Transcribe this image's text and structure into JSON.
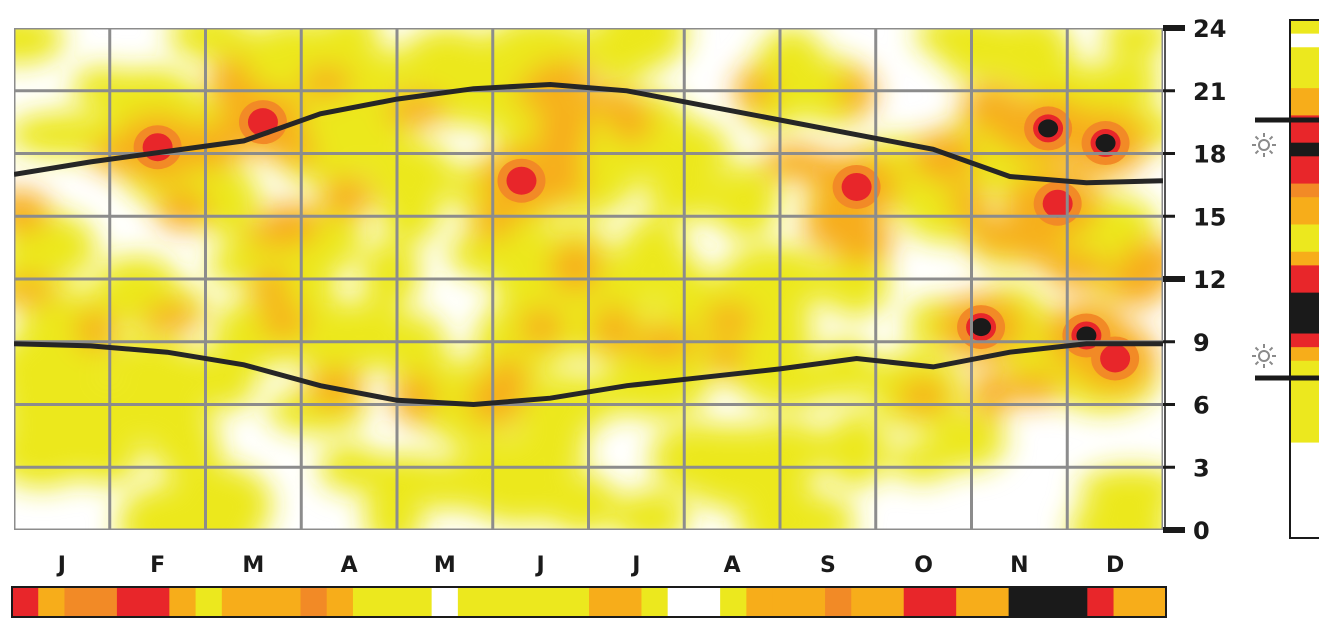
{
  "chart_data": {
    "type": "heatmap",
    "title": "",
    "xlabel": "",
    "ylabel": "",
    "x_categories": [
      "J",
      "F",
      "M",
      "A",
      "M",
      "J",
      "J",
      "A",
      "S",
      "O",
      "N",
      "D"
    ],
    "y_ticks": [
      "24",
      "21",
      "18",
      "15",
      "12",
      "9",
      "6",
      "3",
      "0"
    ],
    "ylim": [
      0,
      24
    ],
    "grid": true,
    "colors": {
      "low": "#ece81e",
      "mid": "#f7ad1a",
      "high": "#f28a26",
      "higher": "#e8262a",
      "max": "#1a1a1a",
      "line": "#262626",
      "grid": "#8c8c8c"
    },
    "sunset_hours": [
      17.0,
      17.6,
      18.1,
      18.6,
      19.9,
      20.6,
      21.1,
      21.3,
      21.0,
      20.3,
      19.6,
      18.9,
      18.2,
      16.9,
      16.6,
      16.7
    ],
    "sunrise_hours": [
      8.9,
      8.8,
      8.5,
      7.9,
      6.9,
      6.2,
      6.0,
      6.3,
      6.9,
      7.3,
      7.7,
      8.2,
      7.8,
      8.5,
      8.9,
      8.9
    ],
    "hotspots": [
      {
        "month": 1.5,
        "hour": 18.3,
        "intensity": 3
      },
      {
        "month": 2.6,
        "hour": 19.5,
        "intensity": 3
      },
      {
        "month": 5.3,
        "hour": 16.7,
        "intensity": 3
      },
      {
        "month": 8.8,
        "hour": 16.4,
        "intensity": 3
      },
      {
        "month": 10.1,
        "hour": 9.7,
        "intensity": 4
      },
      {
        "month": 10.8,
        "hour": 19.2,
        "intensity": 4
      },
      {
        "month": 11.4,
        "hour": 18.5,
        "intensity": 4
      },
      {
        "month": 10.9,
        "hour": 15.6,
        "intensity": 3
      },
      {
        "month": 11.2,
        "hour": 9.3,
        "intensity": 4
      },
      {
        "month": 11.5,
        "hour": 8.2,
        "intensity": 3
      }
    ],
    "legend_sun_icons": [
      "sunset-icon",
      "sunrise-icon"
    ],
    "bottom_strip": [
      "higher",
      "mid",
      "high",
      "high",
      "higher",
      "higher",
      "mid",
      "low",
      "mid",
      "mid",
      "mid",
      "high",
      "mid",
      "low",
      "low",
      "low",
      "empty",
      "low",
      "low",
      "low",
      "low",
      "low",
      "mid",
      "mid",
      "low",
      "empty",
      "empty",
      "low",
      "mid",
      "mid",
      "mid",
      "high",
      "mid",
      "mid",
      "higher",
      "higher",
      "mid",
      "mid",
      "max",
      "max",
      "max",
      "higher",
      "mid",
      "mid"
    ],
    "side_strip": [
      "low",
      "empty",
      "low",
      "low",
      "low",
      "mid",
      "mid",
      "higher",
      "higher",
      "max",
      "higher",
      "higher",
      "high",
      "mid",
      "mid",
      "low",
      "low",
      "mid",
      "higher",
      "higher",
      "max",
      "max",
      "max",
      "higher",
      "mid",
      "low",
      "low",
      "low",
      "low",
      "low",
      "low",
      "empty",
      "empty",
      "empty",
      "empty",
      "empty",
      "empty",
      "empty"
    ]
  }
}
